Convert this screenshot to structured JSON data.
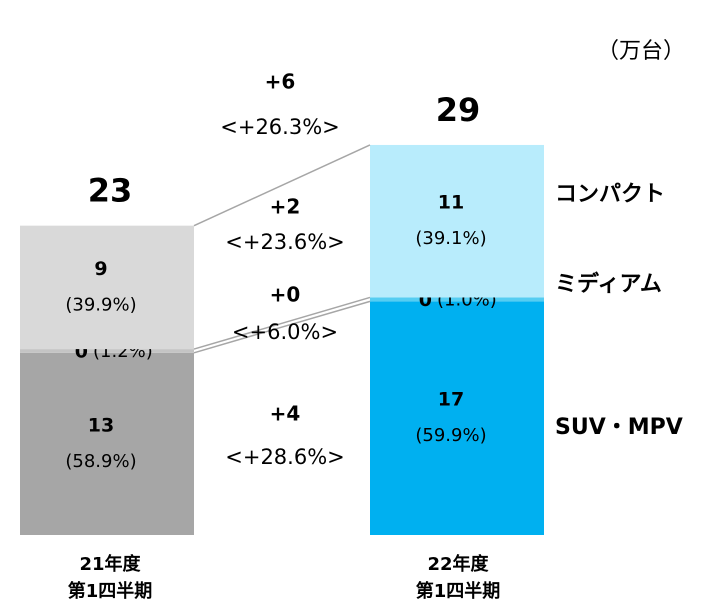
{
  "chart_data": {
    "type": "stacked_bar",
    "unit": "（万台）",
    "categories": [
      [
        "21年度",
        "第1四半期"
      ],
      [
        "22年度",
        "第1四半期"
      ]
    ],
    "totals": [
      23,
      29
    ],
    "total_delta": "+6",
    "total_delta_pct": "<+26.3%>",
    "series": [
      {
        "name": "SUV・MPV",
        "colors": [
          "#a6a6a6",
          "#00b0f0"
        ],
        "values": [
          13,
          17
        ],
        "shares": [
          58.9,
          59.9
        ],
        "share_labels": [
          "(58.9%)",
          "(59.9%)"
        ],
        "delta": "+4",
        "delta_pct": "<+28.6%>"
      },
      {
        "name": "ミディアム",
        "colors": [
          "#c4c4c4",
          "#55cdf2"
        ],
        "values": [
          0,
          0
        ],
        "shares": [
          1.2,
          1.0
        ],
        "share_labels": [
          "(1.2%)",
          "(1.0%)"
        ],
        "delta": "+0",
        "delta_pct": "<+6.0%>"
      },
      {
        "name": "コンパクト",
        "colors": [
          "#d9d9d9",
          "#b8ecfc"
        ],
        "values": [
          9,
          11
        ],
        "shares": [
          39.9,
          39.1
        ],
        "share_labels": [
          "(39.9%)",
          "(39.1%)"
        ],
        "delta": "+2",
        "delta_pct": "<+23.6%>"
      }
    ]
  }
}
